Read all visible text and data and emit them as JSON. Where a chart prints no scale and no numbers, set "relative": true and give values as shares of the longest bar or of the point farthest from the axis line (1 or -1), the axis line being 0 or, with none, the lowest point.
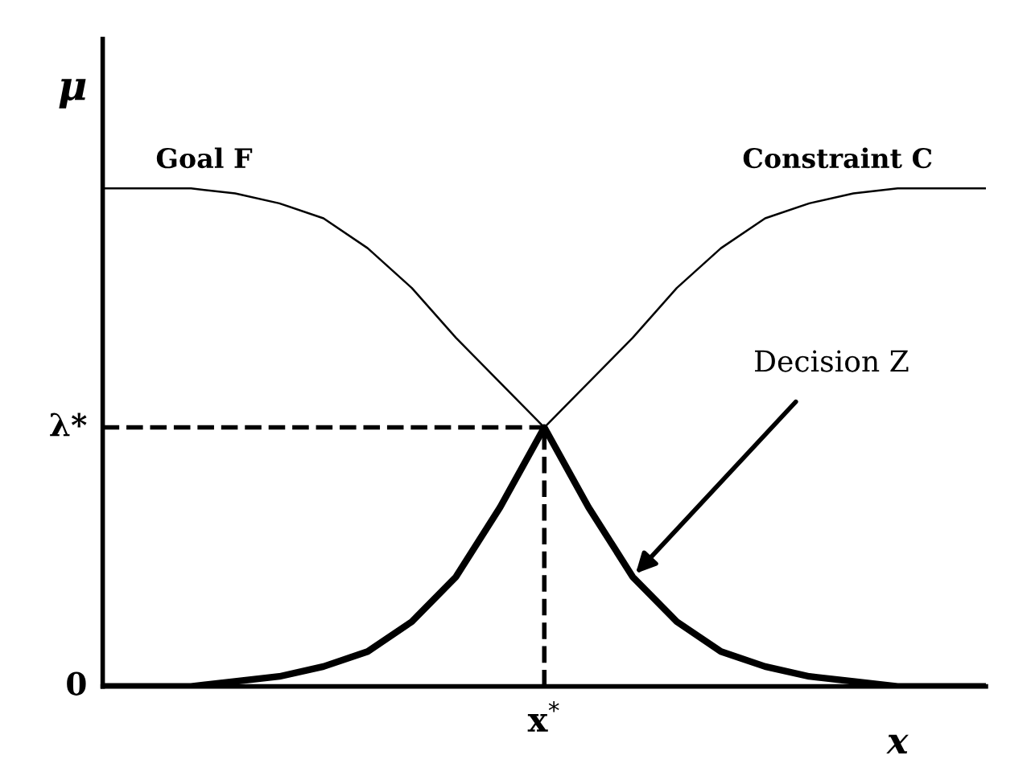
{
  "chart_data": {
    "type": "line",
    "relative": true,
    "ylabel": "μ",
    "xlabel": "x",
    "categories": [
      null,
      null,
      null,
      null,
      null,
      null,
      null,
      null,
      null,
      null,
      null,
      null,
      null,
      null,
      null,
      null,
      null,
      null,
      null,
      null,
      null
    ],
    "series": [
      {
        "name": "Goal F",
        "color": "#000000",
        "values": [
          1,
          1,
          1,
          0.99,
          0.97,
          0.94,
          0.88,
          0.8,
          0.7,
          0.61,
          0.52,
          0.36,
          0.22,
          0.13,
          0.07,
          0.04,
          0.02,
          0.01,
          0,
          0,
          0
        ]
      },
      {
        "name": "Constraint C",
        "color": "#000000",
        "values": [
          0,
          0,
          0,
          0.01,
          0.02,
          0.04,
          0.07,
          0.13,
          0.22,
          0.36,
          0.52,
          0.61,
          0.7,
          0.8,
          0.88,
          0.94,
          0.97,
          0.99,
          1,
          1,
          1
        ]
      },
      {
        "name": "Decision Z",
        "color": "#000000",
        "values": [
          0,
          0,
          0,
          0.01,
          0.02,
          0.04,
          0.07,
          0.13,
          0.22,
          0.36,
          0.52,
          0.36,
          0.22,
          0.13,
          0.07,
          0.04,
          0.02,
          0.01,
          0,
          0,
          0
        ]
      }
    ],
    "ref_lines": [
      {
        "axis": "y",
        "value": 0.52,
        "label": "λ*",
        "line_style": "dashed"
      }
    ],
    "annotations": [
      "0",
      "x$^{*}$"
    ],
    "grid": false,
    "legend": false
  }
}
